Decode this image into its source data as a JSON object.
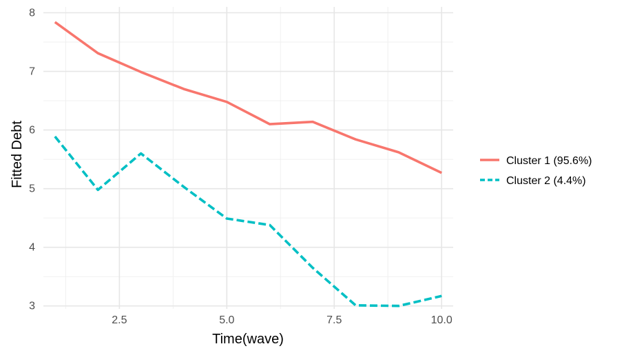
{
  "chart_data": {
    "type": "line",
    "title": "",
    "xlabel": "Time(wave)",
    "ylabel": "Fitted Debt",
    "xlim": [
      0.73,
      10.27
    ],
    "ylim": [
      2.95,
      8.1
    ],
    "x_ticks": [
      2.5,
      5.0,
      7.5,
      10.0
    ],
    "x_tick_labels": [
      "2.5",
      "5.0",
      "7.5",
      "10.0"
    ],
    "y_ticks": [
      3,
      4,
      5,
      6,
      7,
      8
    ],
    "y_tick_labels": [
      "3",
      "4",
      "5",
      "6",
      "7",
      "8"
    ],
    "grid": true,
    "legend_position": "right",
    "x": [
      1,
      2,
      3,
      4,
      5,
      6,
      7,
      8,
      9,
      10
    ],
    "series": [
      {
        "name": "Cluster 1 (95.6%)",
        "color": "#F8766D",
        "dash": "solid",
        "values": [
          7.84,
          7.31,
          6.99,
          6.7,
          6.48,
          6.1,
          6.14,
          5.84,
          5.62,
          5.27
        ]
      },
      {
        "name": "Cluster 2 (4.4%)",
        "color": "#00BFC4",
        "dash": "dashed",
        "values": [
          5.89,
          4.98,
          5.6,
          5.03,
          4.49,
          4.38,
          3.65,
          3.01,
          3.0,
          3.17
        ]
      }
    ]
  }
}
